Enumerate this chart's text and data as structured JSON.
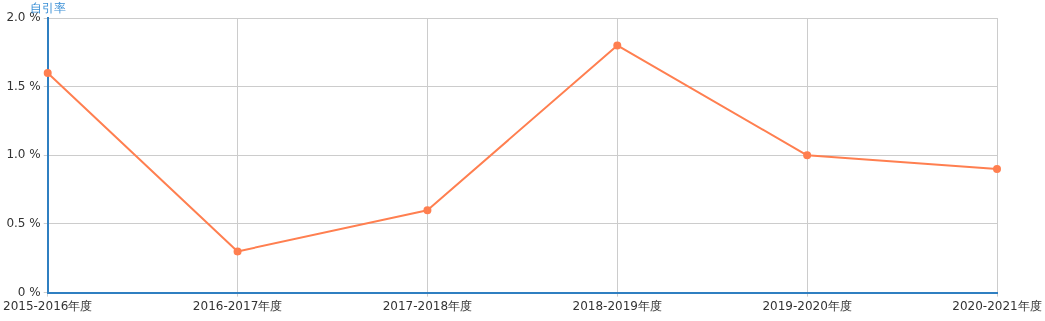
{
  "chart_data": {
    "type": "line",
    "ylabel": "自引率",
    "categories": [
      "2015-2016年度",
      "2016-2017年度",
      "2017-2018年度",
      "2018-2019年度",
      "2019-2020年度",
      "2020-2021年度"
    ],
    "series": [
      {
        "color": "#ff7f50",
        "values": [
          1.6,
          0.3,
          0.6,
          1.8,
          1.0,
          0.9
        ]
      }
    ],
    "ylim": [
      0,
      2
    ],
    "yticks": [
      {
        "value": 0,
        "label": "0 %"
      },
      {
        "value": 0.5,
        "label": "0.5 %"
      },
      {
        "value": 1,
        "label": "1.0 %"
      },
      {
        "value": 1.5,
        "label": "1.5 %"
      },
      {
        "value": 2,
        "label": "2.0 %"
      }
    ],
    "grid": true,
    "marker": "circle",
    "line_style": "solid",
    "legend": false
  }
}
